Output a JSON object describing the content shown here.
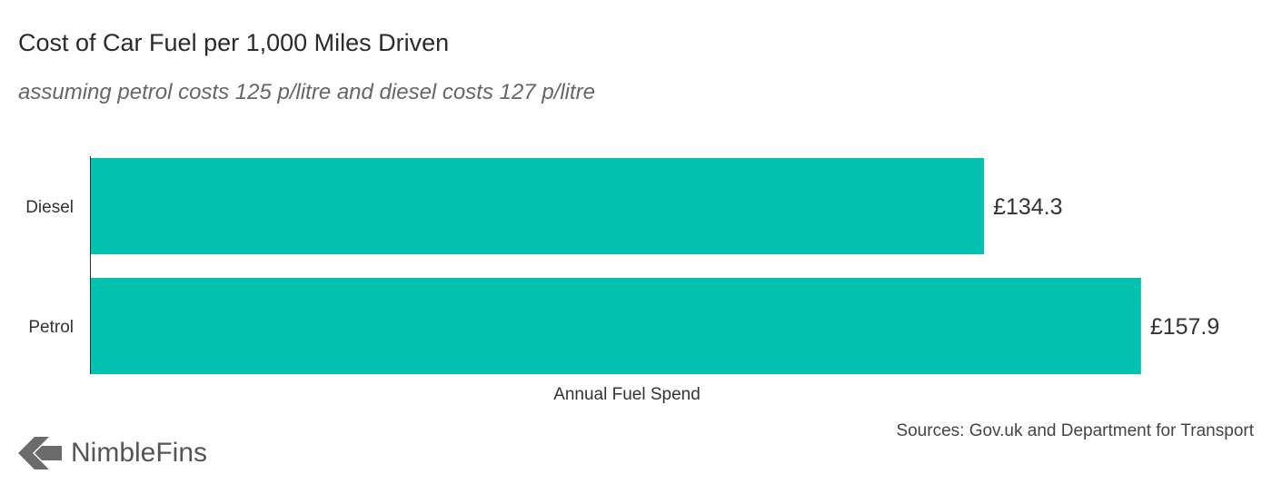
{
  "chart_data": {
    "type": "bar",
    "orientation": "horizontal",
    "title": "Cost of Car Fuel per 1,000 Miles Driven",
    "subtitle": "assuming petrol costs 125 p/litre and diesel costs 127 p/litre",
    "categories": [
      "Diesel",
      "Petrol"
    ],
    "values": [
      134.3,
      157.9
    ],
    "value_labels": [
      "£134.3",
      "£157.9"
    ],
    "xlabel": "Annual Fuel Spend",
    "ylabel": "",
    "xlim": [
      0,
      160
    ],
    "grid": false,
    "legend": "none",
    "bar_color": "#00c2ae"
  },
  "footer": {
    "source": "Sources: Gov.uk and Department for Transport",
    "brand": "NimbleFins",
    "logo_icon": "nimblefins-chevron-logo-icon"
  }
}
